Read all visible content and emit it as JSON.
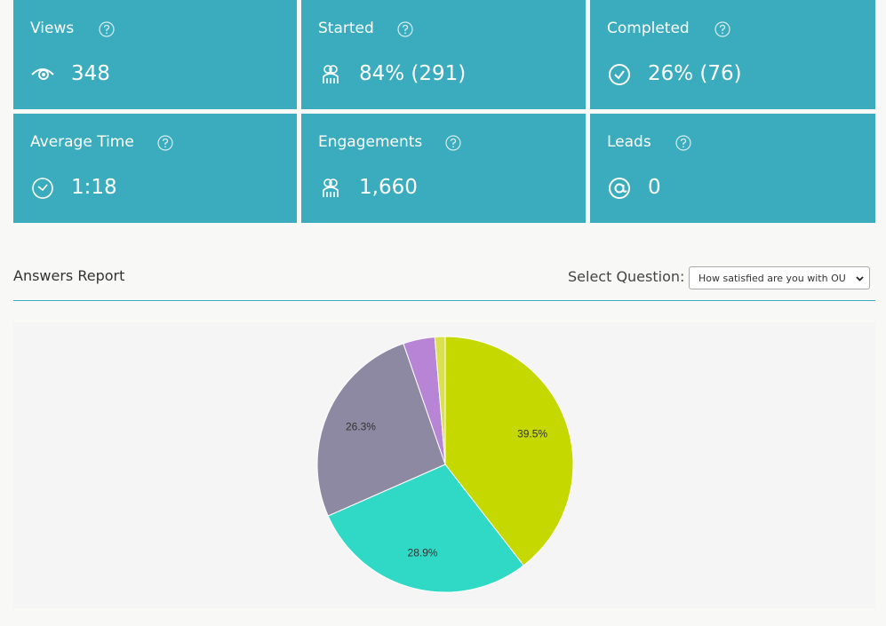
{
  "cards": [
    {
      "title": "Views",
      "value": "348"
    },
    {
      "title": "Started",
      "value": "84% (291)"
    },
    {
      "title": "Completed",
      "value": "26% (76)"
    },
    {
      "title": "Average Time",
      "value": "1:18"
    },
    {
      "title": "Engagements",
      "value": "1,660"
    },
    {
      "title": "Leads",
      "value": "0"
    }
  ],
  "report": {
    "title": "Answers Report",
    "select_label": "Select Question:",
    "select_value": "How satisfied are you with OU"
  },
  "chart_data": {
    "type": "pie",
    "values": [
      39.5,
      28.9,
      26.3,
      4.0,
      1.3
    ],
    "value_labels": [
      "39.5%",
      "28.9%",
      "26.3%",
      null,
      null
    ],
    "colors": [
      "#c5d800",
      "#2fd9c5",
      "#8e89a3",
      "#b784d6",
      "#dbe04e"
    ]
  }
}
